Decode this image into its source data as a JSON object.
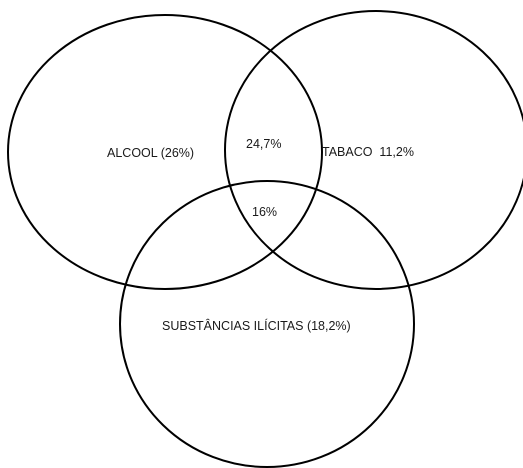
{
  "diagram": {
    "type": "venn",
    "sets": {
      "alcool": "ALCOOL (26%)",
      "tabaco": "TABACO  11,2%",
      "substancias": "SUBSTÂNCIAS ILÍCITAS (18,2%)"
    },
    "intersections": {
      "alcool_tabaco": "24,7%",
      "all_three": "16%"
    },
    "colors": {
      "stroke": "#000000",
      "text": "#1a1a1a",
      "background": "#ffffff"
    }
  }
}
